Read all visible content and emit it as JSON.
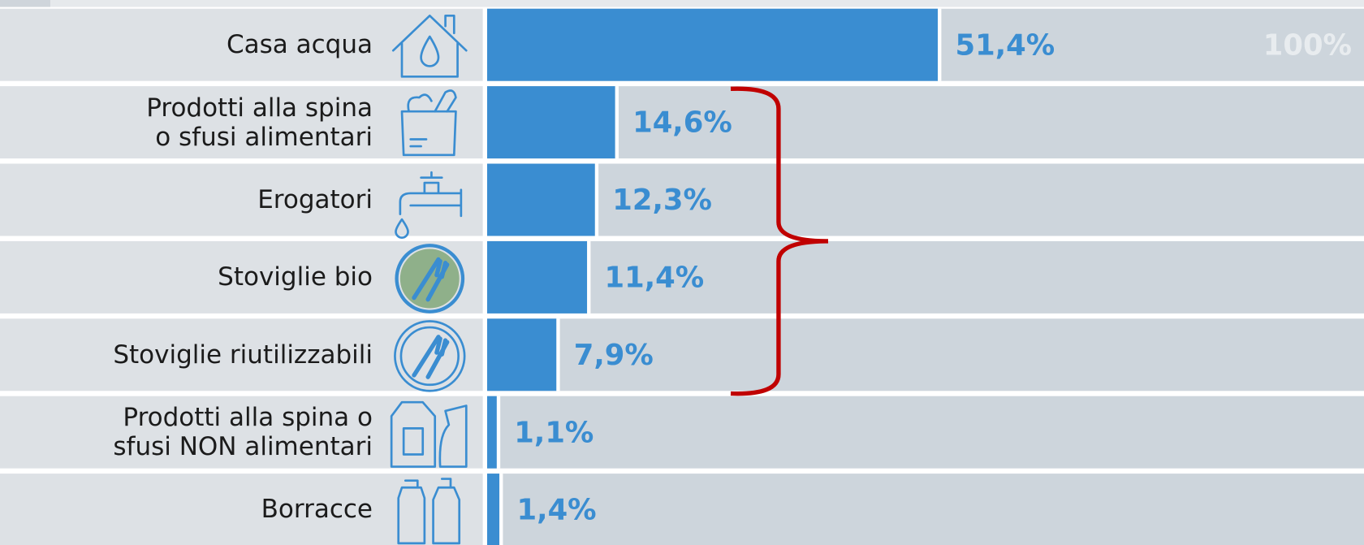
{
  "chart_data": {
    "type": "bar",
    "orientation": "horizontal",
    "categories": [
      "Casa acqua",
      "Prodotti alla spina\no sfusi alimentari",
      "Erogatori",
      "Stoviglie bio",
      "Stoviglie riutilizzabili",
      "Prodotti alla spina o\nsfusi NON alimentari",
      "Borracce"
    ],
    "values": [
      51.4,
      14.6,
      12.3,
      11.4,
      7.9,
      1.1,
      1.4
    ],
    "value_labels": [
      "51,4%",
      "14,6%",
      "12,3%",
      "11,4%",
      "7,9%",
      "1,1%",
      "1,4%"
    ],
    "color": "#3a8dd1",
    "xlim": [
      0,
      100
    ],
    "annotation": "100%"
  }
}
